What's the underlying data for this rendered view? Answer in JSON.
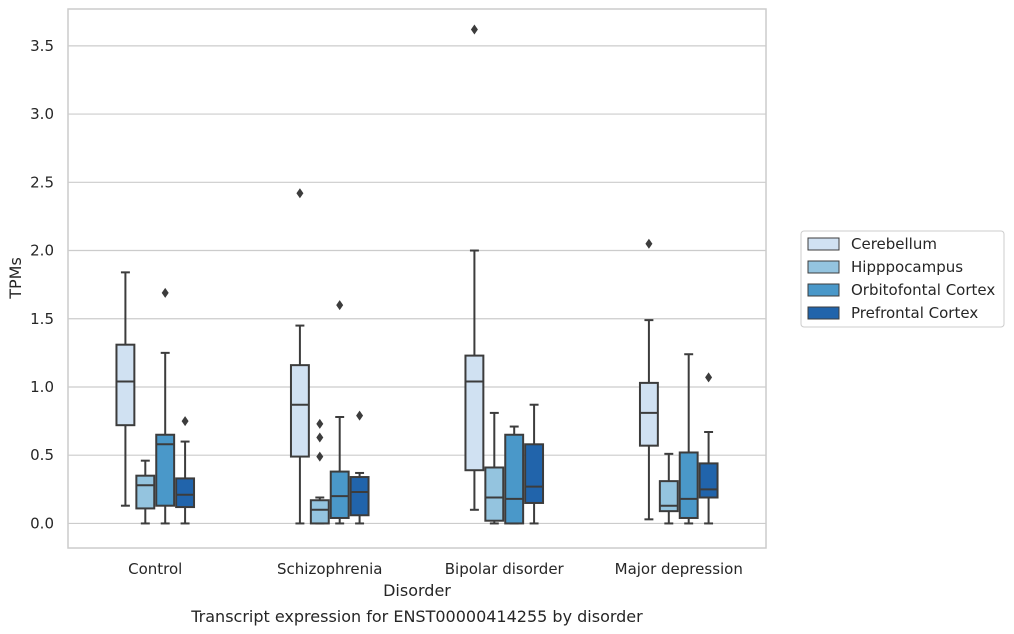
{
  "chart_data": {
    "type": "box",
    "xlabel": "Disorder",
    "ylabel": "TPMs",
    "caption": "Transcript expression for ENST00000414255 by disorder",
    "categories": [
      "Control",
      "Schizophrenia",
      "Bipolar disorder",
      "Major depression"
    ],
    "ylim": [
      -0.18,
      3.77
    ],
    "yticks": [
      "0.0",
      "0.5",
      "1.0",
      "1.5",
      "2.0",
      "2.5",
      "3.0",
      "3.5"
    ],
    "grid": "horizontal",
    "legend_position": "right",
    "series": [
      {
        "name": "Cerebellum",
        "color": "#d0e1f2",
        "boxes": [
          {
            "whislo": 0.13,
            "q1": 0.72,
            "med": 1.04,
            "q3": 1.31,
            "whishi": 1.84,
            "fliers": []
          },
          {
            "whislo": 0.0,
            "q1": 0.49,
            "med": 0.87,
            "q3": 1.16,
            "whishi": 1.45,
            "fliers": [
              2.42
            ]
          },
          {
            "whislo": 0.1,
            "q1": 0.39,
            "med": 1.04,
            "q3": 1.23,
            "whishi": 2.0,
            "fliers": [
              3.62
            ]
          },
          {
            "whislo": 0.03,
            "q1": 0.57,
            "med": 0.81,
            "q3": 1.03,
            "whishi": 1.49,
            "fliers": [
              2.05
            ]
          }
        ]
      },
      {
        "name": "Hipppocampus",
        "color": "#94c4df",
        "boxes": [
          {
            "whislo": 0.0,
            "q1": 0.11,
            "med": 0.28,
            "q3": 0.35,
            "whishi": 0.46,
            "fliers": []
          },
          {
            "whislo": 0.0,
            "q1": 0.0,
            "med": 0.1,
            "q3": 0.17,
            "whishi": 0.19,
            "fliers": [
              0.49,
              0.63,
              0.73
            ]
          },
          {
            "whislo": 0.0,
            "q1": 0.02,
            "med": 0.19,
            "q3": 0.41,
            "whishi": 0.81,
            "fliers": []
          },
          {
            "whislo": 0.0,
            "q1": 0.09,
            "med": 0.13,
            "q3": 0.31,
            "whishi": 0.51,
            "fliers": []
          }
        ]
      },
      {
        "name": "Orbitofontal Cortex",
        "color": "#4a98c9",
        "boxes": [
          {
            "whislo": 0.0,
            "q1": 0.13,
            "med": 0.58,
            "q3": 0.65,
            "whishi": 1.25,
            "fliers": [
              1.69
            ]
          },
          {
            "whislo": 0.0,
            "q1": 0.04,
            "med": 0.2,
            "q3": 0.38,
            "whishi": 0.78,
            "fliers": [
              1.6
            ]
          },
          {
            "whislo": 0.0,
            "q1": 0.0,
            "med": 0.18,
            "q3": 0.65,
            "whishi": 0.71,
            "fliers": []
          },
          {
            "whislo": 0.0,
            "q1": 0.04,
            "med": 0.18,
            "q3": 0.52,
            "whishi": 1.24,
            "fliers": []
          }
        ]
      },
      {
        "name": "Prefrontal Cortex",
        "color": "#2164ab",
        "boxes": [
          {
            "whislo": 0.0,
            "q1": 0.12,
            "med": 0.21,
            "q3": 0.33,
            "whishi": 0.6,
            "fliers": [
              0.75
            ]
          },
          {
            "whislo": 0.0,
            "q1": 0.06,
            "med": 0.23,
            "q3": 0.34,
            "whishi": 0.37,
            "fliers": [
              0.79
            ]
          },
          {
            "whislo": 0.0,
            "q1": 0.15,
            "med": 0.27,
            "q3": 0.58,
            "whishi": 0.87,
            "fliers": []
          },
          {
            "whislo": 0.0,
            "q1": 0.19,
            "med": 0.25,
            "q3": 0.44,
            "whishi": 0.67,
            "fliers": [
              1.07
            ]
          }
        ]
      }
    ]
  }
}
